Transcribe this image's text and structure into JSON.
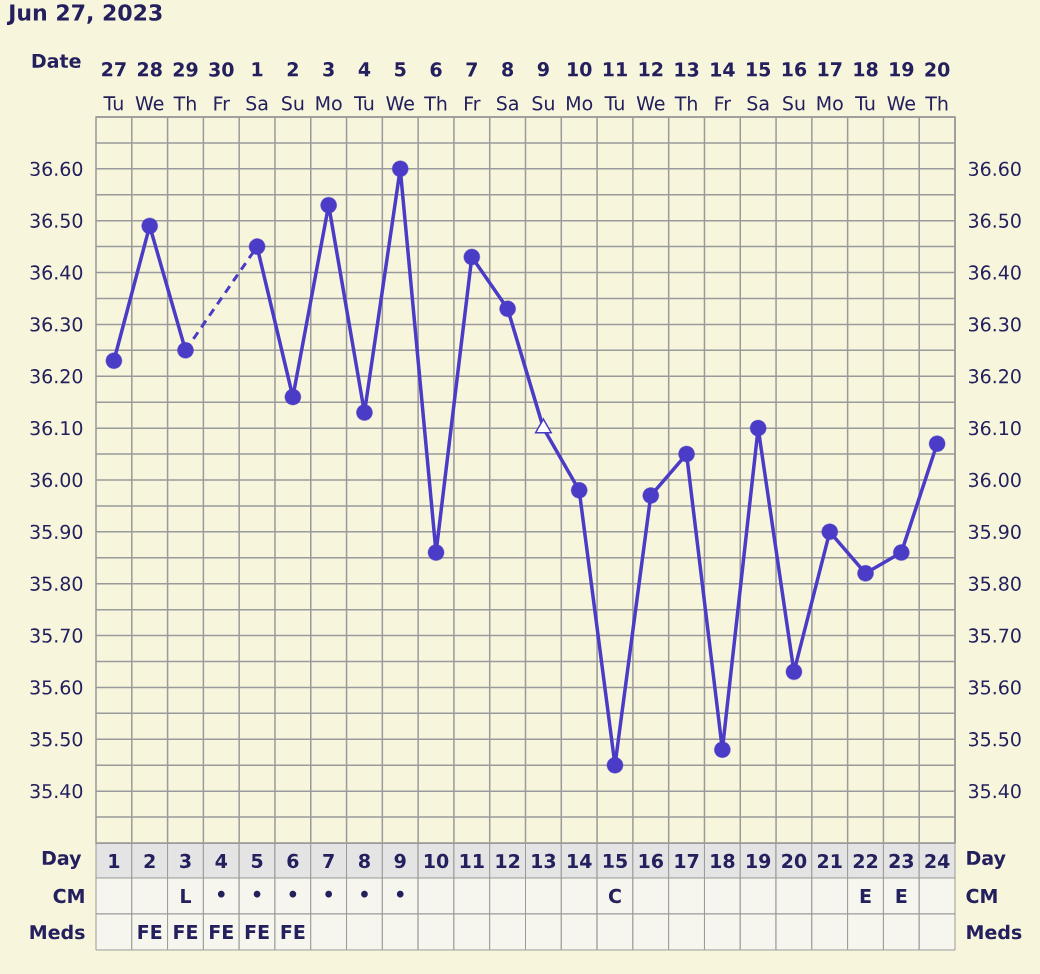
{
  "chart_data": [
    {
      "type": "line",
      "title": "Jun 27, 2023",
      "xlabel": "Day",
      "x2label": "Date",
      "x": [
        1,
        2,
        3,
        4,
        5,
        6,
        7,
        8,
        9,
        10,
        11,
        12,
        13,
        14,
        15,
        16,
        17,
        18,
        19,
        20,
        21,
        22,
        23,
        24
      ],
      "xlim": [
        0.5,
        24.5
      ],
      "xticks": [
        1,
        2,
        3,
        4,
        5,
        6,
        7,
        8,
        9,
        10,
        11,
        12,
        13,
        14,
        15,
        16,
        17,
        18,
        19,
        20,
        21,
        22,
        23,
        24
      ],
      "x2lim": [
        "2023-06-26T12:00",
        "2023-07-20T12:00"
      ],
      "x2ticks": [
        {
          "value": "2023-06-27",
          "label": "**27** Tu"
        },
        {
          "value": "2023-06-28",
          "label": "**28** We"
        },
        {
          "value": "2023-06-29",
          "label": "**29** Th"
        },
        {
          "value": "2023-06-30",
          "label": "**30** Fr"
        },
        {
          "value": "2023-07-01",
          "label": "**1** Sa"
        },
        {
          "value": "2023-07-02",
          "label": "**2** Su"
        },
        {
          "value": "2023-07-03",
          "label": "**3** Mo"
        },
        {
          "value": "2023-07-04",
          "label": "**4** Tu"
        },
        {
          "value": "2023-07-05",
          "label": "**5** We"
        },
        {
          "value": "2023-07-06",
          "label": "**6** Th"
        },
        {
          "value": "2023-07-07",
          "label": "**7** Fr"
        },
        {
          "value": "2023-07-08",
          "label": "**8** Sa"
        },
        {
          "value": "2023-07-09",
          "label": "**9** Su"
        },
        {
          "value": "2023-07-10",
          "label": "**10** Mo"
        },
        {
          "value": "2023-07-11",
          "label": "**11** Tu"
        },
        {
          "value": "2023-07-12",
          "label": "**12** We"
        },
        {
          "value": "2023-07-13",
          "label": "**13** Th"
        },
        {
          "value": "2023-07-14",
          "label": "**14** Fr"
        },
        {
          "value": "2023-07-15",
          "label": "**15** Sa"
        },
        {
          "value": "2023-07-16",
          "label": "**16** Su"
        },
        {
          "value": "2023-07-17",
          "label": "**17** Mo"
        },
        {
          "value": "2023-07-18",
          "label": "**18** Tu"
        },
        {
          "value": "2023-07-19",
          "label": "**19** We"
        },
        {
          "value": "2023-07-20",
          "label": "**20** Th"
        }
      ],
      "ylim": [
        35.3,
        36.7
      ],
      "yticks": [
        {
          "value": 35.35,
          "label": null
        },
        {
          "value": 35.4,
          "label": "35.40"
        },
        {
          "value": 35.45,
          "label": null
        },
        {
          "value": 35.5,
          "label": "35.50"
        },
        {
          "value": 35.55,
          "label": null
        },
        {
          "value": 35.6,
          "label": "35.60"
        },
        {
          "value": 35.65,
          "label": null
        },
        {
          "value": 35.7,
          "label": "35.70"
        },
        {
          "value": 35.75,
          "label": null
        },
        {
          "value": 35.8,
          "label": "35.80"
        },
        {
          "value": 35.85,
          "label": null
        },
        {
          "value": 35.9,
          "label": "35.90"
        },
        {
          "value": 35.95,
          "label": null
        },
        {
          "value": 36.0,
          "label": "36.00"
        },
        {
          "value": 36.05,
          "label": null
        },
        {
          "value": 36.1,
          "label": "36.10"
        },
        {
          "value": 36.15,
          "label": null
        },
        {
          "value": 36.2,
          "label": "36.20"
        },
        {
          "value": 36.25,
          "label": null
        },
        {
          "value": 36.3,
          "label": "36.30"
        },
        {
          "value": 36.35,
          "label": null
        },
        {
          "value": 36.4,
          "label": "36.40"
        },
        {
          "value": 36.45,
          "label": null
        },
        {
          "value": 36.5,
          "label": "36.50"
        },
        {
          "value": 36.55,
          "label": null
        },
        {
          "value": 36.6,
          "label": "36.60"
        },
        {
          "value": 36.65,
          "label": null
        }
      ],
      "y2lim": [
        35.3,
        36.7
      ],
      "y2ticks": [
        {
          "value": 35.35,
          "label": null
        },
        {
          "value": 35.4,
          "label": "35.40"
        },
        {
          "value": 35.45,
          "label": null
        },
        {
          "value": 35.5,
          "label": "35.50"
        },
        {
          "value": 35.55,
          "label": null
        },
        {
          "value": 35.6,
          "label": "35.60"
        },
        {
          "value": 35.65,
          "label": null
        },
        {
          "value": 35.7,
          "label": "35.70"
        },
        {
          "value": 35.75,
          "label": null
        },
        {
          "value": 35.8,
          "label": "35.80"
        },
        {
          "value": 35.85,
          "label": null
        },
        {
          "value": 35.9,
          "label": "35.90"
        },
        {
          "value": 35.95,
          "label": null
        },
        {
          "value": 36.0,
          "label": "36.00"
        },
        {
          "value": 36.05,
          "label": null
        },
        {
          "value": 36.1,
          "label": "36.10"
        },
        {
          "value": 36.15,
          "label": null
        },
        {
          "value": 36.2,
          "label": "36.20"
        },
        {
          "value": 36.25,
          "label": null
        },
        {
          "value": 36.3,
          "label": "36.30"
        },
        {
          "value": 36.35,
          "label": null
        },
        {
          "value": 36.4,
          "label": "36.40"
        },
        {
          "value": 36.45,
          "label": null
        },
        {
          "value": 36.5,
          "label": "36.50"
        },
        {
          "value": 36.55,
          "label": null
        },
        {
          "value": 36.6,
          "label": "36.60"
        },
        {
          "value": 36.65,
          "label": null
        }
      ],
      "grid": true,
      "series": [
        {
          "color": "#4a3cc6",
          "marker": "circle",
          "line_style": "solid",
          "values": [
            36.23,
            36.49,
            36.25,
            null,
            36.45,
            36.16,
            36.53,
            36.13,
            36.6,
            35.86,
            36.43,
            36.33,
            36.1,
            35.98,
            35.45,
            35.97,
            36.05,
            35.48,
            36.1,
            35.63,
            35.9,
            35.82,
            35.86,
            36.07
          ]
        },
        {
          "type": "scatter",
          "color": "#4a3cc6",
          "marker": "triangle",
          "x": [
            13
          ],
          "values": [
            36.1
          ]
        }
      ]
    },
    {
      "type": "heatmap",
      "categories": [
        null,
        null,
        null,
        null,
        null,
        null,
        null,
        null,
        null,
        null,
        null,
        null,
        null,
        null,
        null,
        null,
        null,
        null,
        null,
        null,
        null,
        null,
        null,
        null
      ],
      "y_categories": [
        "CM",
        "Meds"
      ],
      "y2_categories": [
        "CM",
        "Meds"
      ],
      "cells": [
        [
          null,
          null,
          null,
          null,
          null,
          null,
          null,
          null,
          null,
          null,
          null,
          null,
          null,
          null,
          null,
          null,
          null,
          null,
          null,
          null,
          null,
          null,
          null,
          null
        ],
        [
          null,
          null,
          null,
          null,
          null,
          null,
          null,
          null,
          null,
          null,
          null,
          null,
          null,
          null,
          null,
          null,
          null,
          null,
          null,
          null,
          null,
          null,
          null,
          null
        ]
      ],
      "cell_labels": [
        [
          null,
          null,
          "L",
          "•",
          "•",
          "•",
          "•",
          "•",
          "•",
          null,
          null,
          null,
          null,
          null,
          "C",
          null,
          null,
          null,
          null,
          null,
          null,
          "E",
          "E",
          null
        ],
        [
          null,
          "FE",
          "FE",
          "FE",
          "FE",
          "FE",
          null,
          null,
          null,
          null,
          null,
          null,
          null,
          null,
          null,
          null,
          null,
          null,
          null,
          null,
          null,
          null,
          null,
          null
        ]
      ]
    }
  ]
}
